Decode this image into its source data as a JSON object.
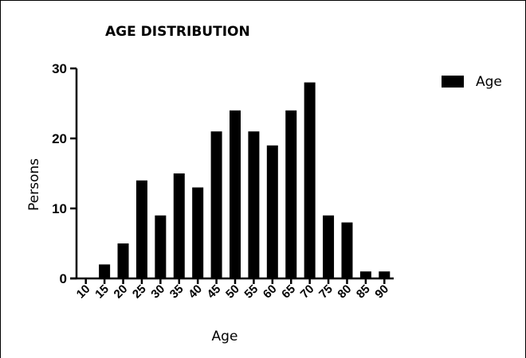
{
  "chart_data": {
    "type": "bar",
    "title": "AGE DISTRIBUTION",
    "xlabel": "Age",
    "ylabel": "Persons",
    "ylim": [
      0,
      30
    ],
    "yticks": [
      "0",
      "10",
      "20",
      "30"
    ],
    "categories": [
      "10",
      "15",
      "20",
      "25",
      "30",
      "35",
      "40",
      "45",
      "50",
      "55",
      "60",
      "65",
      "70",
      "75",
      "80",
      "85",
      "90"
    ],
    "series": [
      {
        "name": "Age",
        "values": [
          0,
          2,
          5,
          14,
          9,
          15,
          13,
          21,
          24,
          21,
          19,
          24,
          28,
          9,
          8,
          1,
          1
        ]
      }
    ],
    "legend": "top-right",
    "grid": false,
    "bar_color": "#000000"
  }
}
